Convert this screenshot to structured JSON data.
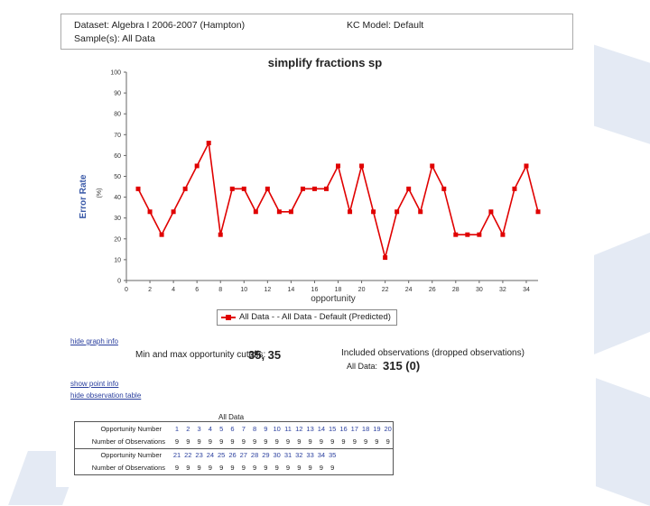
{
  "header": {
    "dataset": "Dataset: Algebra I 2006-2007 (Hampton)",
    "kc_model": "KC Model: Default",
    "samples": "Sample(s): All Data"
  },
  "chart_data": {
    "type": "line",
    "title": "simplify fractions sp",
    "xlabel": "opportunity",
    "ylabel": "Error Rate",
    "ylabel_unit": "(%)",
    "xlim": [
      0,
      35
    ],
    "ylim": [
      0,
      100
    ],
    "yticks": [
      0,
      10,
      20,
      30,
      40,
      50,
      60,
      70,
      80,
      90,
      100
    ],
    "xticks": [
      0,
      2,
      4,
      6,
      8,
      10,
      12,
      14,
      16,
      18,
      20,
      22,
      24,
      26,
      28,
      30,
      32,
      34
    ],
    "x": [
      1,
      2,
      3,
      4,
      5,
      6,
      7,
      8,
      9,
      10,
      11,
      12,
      13,
      14,
      15,
      16,
      17,
      18,
      19,
      20,
      21,
      22,
      23,
      24,
      25,
      26,
      27,
      28,
      29,
      30,
      31,
      32,
      33,
      34,
      35
    ],
    "series": [
      {
        "name": "All Data - - All Data - Default (Predicted)",
        "color": "#e00000",
        "values": [
          44,
          33,
          22,
          33,
          44,
          55,
          66,
          22,
          44,
          44,
          33,
          44,
          33,
          33,
          44,
          44,
          44,
          55,
          33,
          55,
          33,
          11,
          33,
          44,
          33,
          55,
          44,
          22,
          22,
          22,
          33,
          22,
          44,
          55,
          33
        ]
      }
    ],
    "legend": "bottom-center",
    "grid": false
  },
  "links": {
    "hide_graph_info": "hide graph info",
    "show_point_info": "show point info",
    "hide_observation_table": "hide observation table"
  },
  "cutoffs": {
    "label": "Min and max opportunity cutoffs:",
    "value": "35, 35"
  },
  "observations": {
    "label": "Included observations (dropped observations)",
    "series_label": "All Data:",
    "value": "315 (0)"
  },
  "table": {
    "title": "All Data",
    "row_labels": {
      "opportunity": "Opportunity Number",
      "observations": "Number of Observations"
    },
    "part1": {
      "opportunity": [
        "1",
        "2",
        "3",
        "4",
        "5",
        "6",
        "7",
        "8",
        "9",
        "10",
        "11",
        "12",
        "13",
        "14",
        "15",
        "16",
        "17",
        "18",
        "19",
        "20"
      ],
      "observations": [
        "9",
        "9",
        "9",
        "9",
        "9",
        "9",
        "9",
        "9",
        "9",
        "9",
        "9",
        "9",
        "9",
        "9",
        "9",
        "9",
        "9",
        "9",
        "9",
        "9"
      ]
    },
    "part2": {
      "opportunity": [
        "21",
        "22",
        "23",
        "24",
        "25",
        "26",
        "27",
        "28",
        "29",
        "30",
        "31",
        "32",
        "33",
        "34",
        "35"
      ],
      "observations": [
        "9",
        "9",
        "9",
        "9",
        "9",
        "9",
        "9",
        "9",
        "9",
        "9",
        "9",
        "9",
        "9",
        "9",
        "9"
      ]
    }
  }
}
